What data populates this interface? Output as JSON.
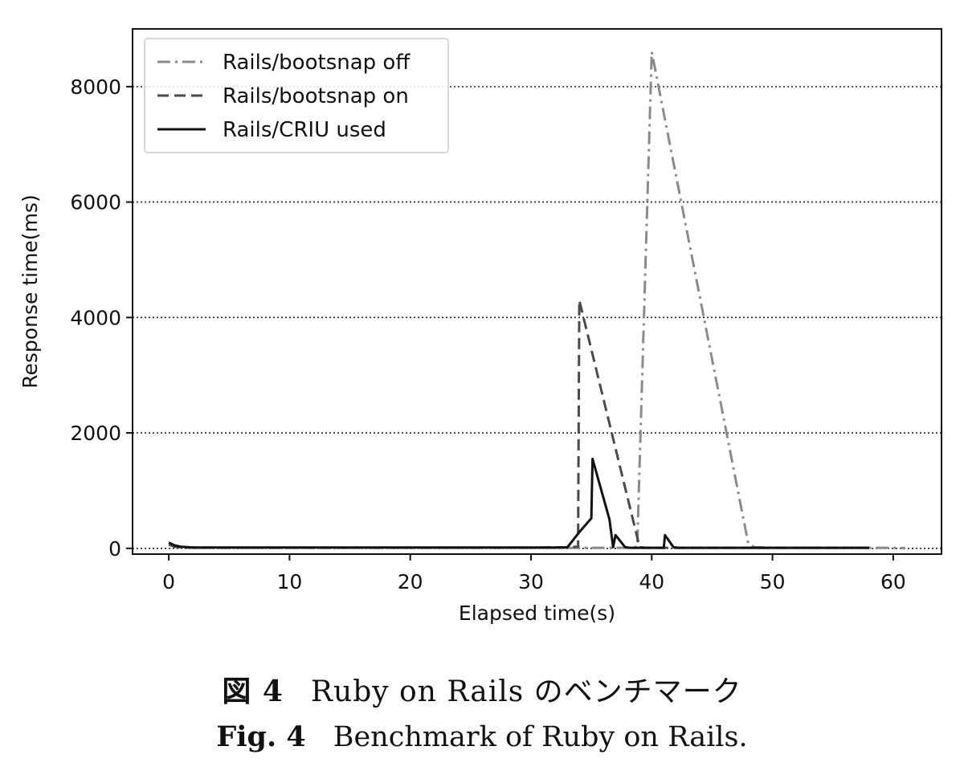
{
  "chart_data": {
    "type": "line",
    "xlabel": "Elapsed time(s)",
    "ylabel": "Response time(ms)",
    "xlim": [
      -3,
      64
    ],
    "ylim": [
      -100,
      9000
    ],
    "xticks": [
      0,
      10,
      20,
      30,
      40,
      50,
      60
    ],
    "yticks": [
      0,
      2000,
      4000,
      6000,
      8000
    ],
    "grid": "horizontal dotted",
    "legend": "top-left",
    "series": [
      {
        "name": "Rails/bootsnap off",
        "color": "#8a8a8a",
        "dash": "dashdot",
        "x": [
          0,
          0.5,
          1,
          2,
          5,
          10,
          15,
          20,
          25,
          30,
          33,
          34,
          36,
          38,
          38.5,
          38.8,
          40,
          48,
          48.5,
          50,
          55,
          60,
          61
        ],
        "y": [
          60,
          25,
          15,
          10,
          10,
          10,
          10,
          10,
          10,
          10,
          10,
          10,
          10,
          10,
          15,
          30,
          8600,
          80,
          20,
          10,
          10,
          10,
          5
        ]
      },
      {
        "name": "Rails/bootsnap on",
        "color": "#4a4a4a",
        "dash": "dashed",
        "x": [
          0,
          0.5,
          1,
          5,
          10,
          20,
          30,
          33,
          33.9,
          34,
          39,
          39.5,
          42,
          50,
          58
        ],
        "y": [
          70,
          30,
          15,
          12,
          12,
          12,
          12,
          20,
          30,
          4300,
          20,
          10,
          10,
          10,
          10
        ]
      },
      {
        "name": "Rails/CRIU used",
        "color": "#111111",
        "dash": "solid",
        "x": [
          0,
          0.5,
          1,
          2,
          5,
          10,
          15,
          20,
          25,
          30,
          33,
          34,
          35,
          35.1,
          36.5,
          36.8,
          37,
          37.8,
          38.2,
          41,
          41.1,
          41.8,
          42.2,
          45,
          50,
          55,
          58
        ],
        "y": [
          100,
          50,
          30,
          15,
          15,
          15,
          15,
          15,
          15,
          15,
          15,
          280,
          520,
          1550,
          500,
          20,
          230,
          20,
          10,
          10,
          230,
          20,
          10,
          10,
          10,
          10,
          10
        ]
      }
    ]
  },
  "caption": {
    "jp_label": "図 4",
    "jp_text": "Ruby on Rails のベンチマーク",
    "en_label": "Fig. 4",
    "en_text": "Benchmark of Ruby on Rails."
  }
}
